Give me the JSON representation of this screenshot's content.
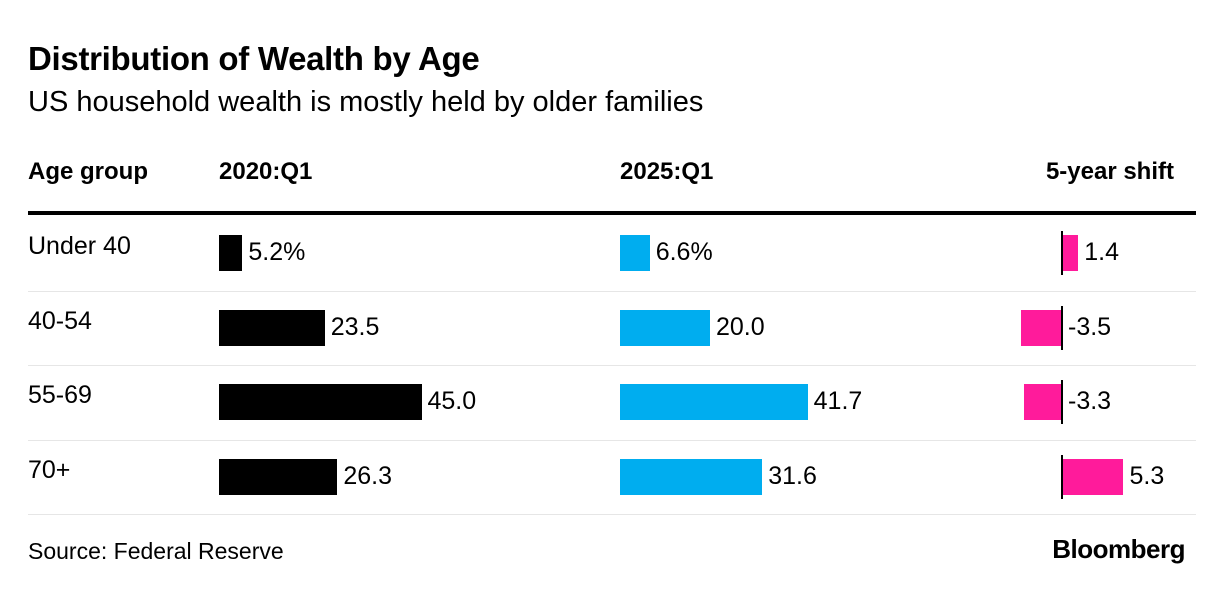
{
  "title": "Distribution of Wealth by Age",
  "subtitle": "US household wealth is mostly held by older families",
  "headers": {
    "age_group": "Age group",
    "col2020": "2020:Q1",
    "col2025": "2025:Q1",
    "shift": "5-year shift"
  },
  "source": "Source: Federal Reserve",
  "brand": "Bloomberg",
  "colors": {
    "bar2020": "#000000",
    "bar2025": "#00adef",
    "shift": "#ff1b9b"
  },
  "chart_data": {
    "type": "table",
    "categories": [
      "Under 40",
      "40-54",
      "55-69",
      "70+"
    ],
    "series": [
      {
        "name": "2020:Q1",
        "values": [
          5.2,
          23.5,
          45.0,
          26.3
        ],
        "labels": [
          "5.2%",
          "23.5",
          "45.0",
          "26.3"
        ]
      },
      {
        "name": "2025:Q1",
        "values": [
          6.6,
          20.0,
          41.7,
          31.6
        ],
        "labels": [
          "6.6%",
          "20.0",
          "41.7",
          "31.6"
        ]
      },
      {
        "name": "5-year shift",
        "values": [
          1.4,
          -3.5,
          -3.3,
          5.3
        ],
        "labels": [
          "1.4",
          "-3.5",
          "-3.3",
          "5.3"
        ]
      }
    ]
  }
}
